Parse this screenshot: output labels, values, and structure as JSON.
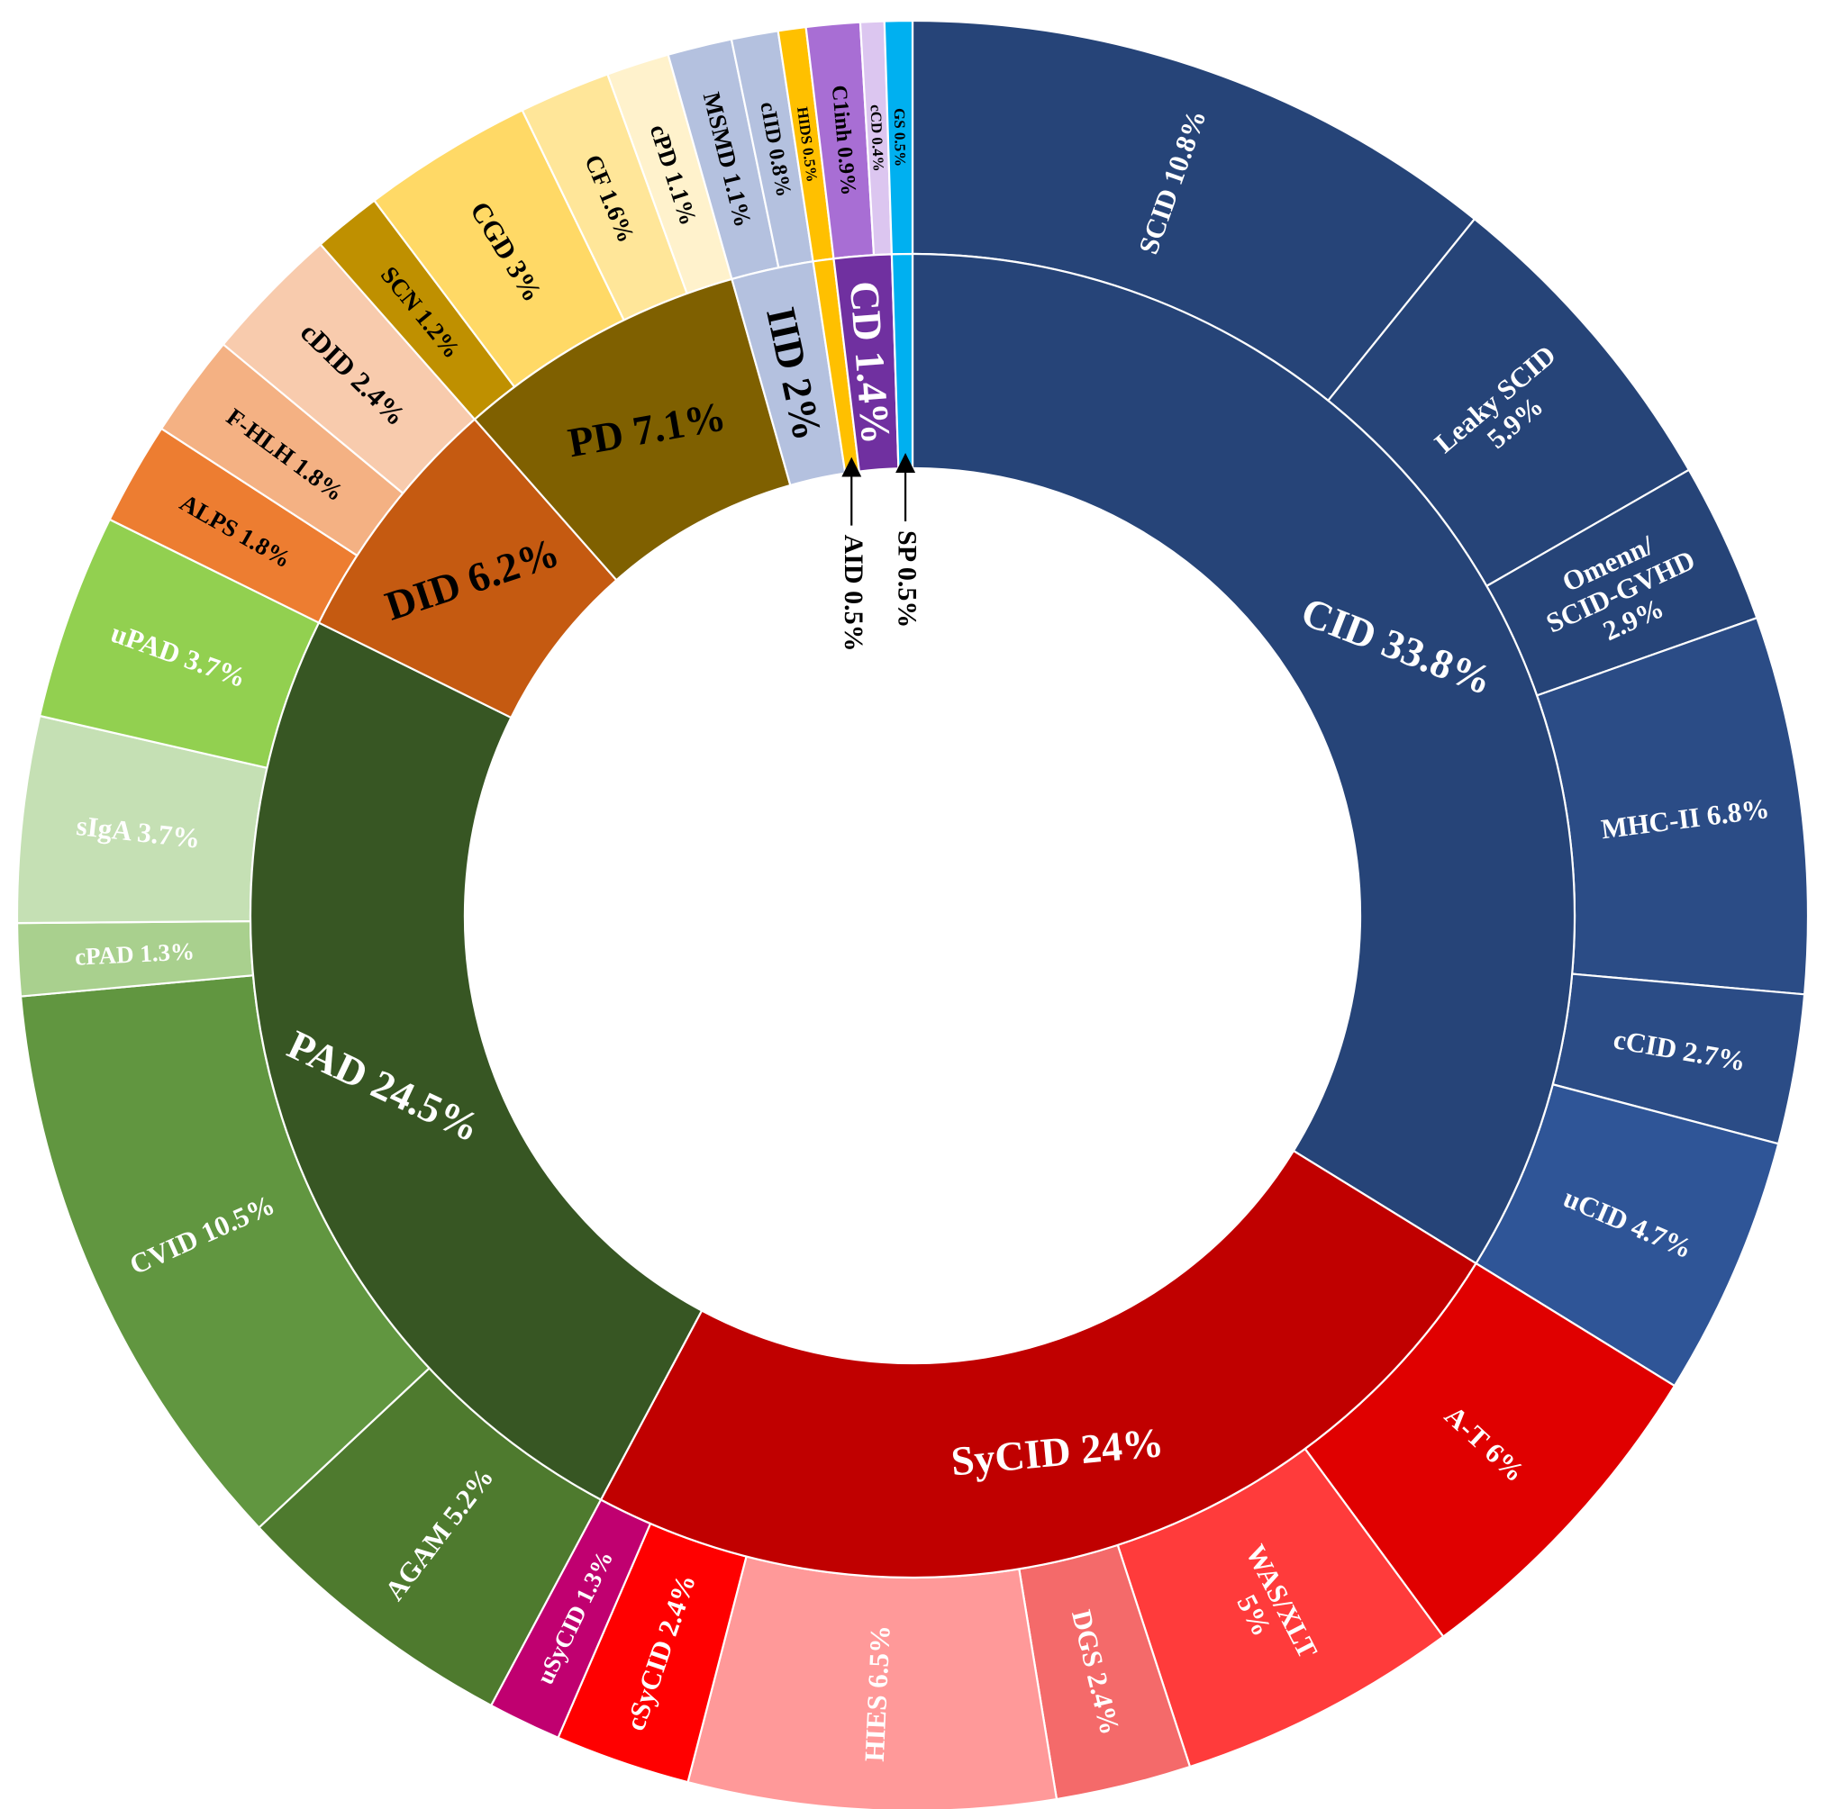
{
  "chart_data": {
    "type": "sunburst",
    "unit": "%",
    "inner_ring": [
      {
        "label": "CID",
        "value": 33.8,
        "text": "CID  33.8%",
        "color": "#264478",
        "text_color": "#ffffff"
      },
      {
        "label": "SyCID",
        "value": 24,
        "text": "SyCID 24%",
        "color": "#c00000",
        "text_color": "#ffffff"
      },
      {
        "label": "PAD",
        "value": 24.5,
        "text": "PAD 24.5%",
        "color": "#375623",
        "text_color": "#ffffff"
      },
      {
        "label": "DID",
        "value": 6.2,
        "text": "DID 6.2%",
        "color": "#c55a11",
        "text_color": "#000000"
      },
      {
        "label": "PD",
        "value": 7.1,
        "text": "PD 7.1%",
        "color": "#7f6000",
        "text_color": "#000000"
      },
      {
        "label": "IID",
        "value": 2,
        "text": "IID 2%",
        "color": "#b4c1df",
        "text_color": "#000000"
      },
      {
        "label": "AID",
        "value": 0.5,
        "text": "",
        "color": "#ffc000",
        "text_color": "#000000"
      },
      {
        "label": "CD",
        "value": 1.4,
        "text": "CD 1.4%",
        "color": "#7030a0",
        "text_color": "#ffffff"
      },
      {
        "label": "SP",
        "value": 0.5,
        "text": "",
        "color": "#00b0f0",
        "text_color": "#000000"
      }
    ],
    "outer_ring": [
      {
        "parent": "CID",
        "label": "SCID",
        "value": 10.8,
        "text": "SCID  10.8%",
        "color": "#264478",
        "text_color": "#ffffff"
      },
      {
        "parent": "CID",
        "label": "Leaky SCID",
        "value": 5.9,
        "text": "Leaky SCID|5.9%",
        "color": "#264478",
        "text_color": "#ffffff"
      },
      {
        "parent": "CID",
        "label": "Omenn/SCID-GVHD",
        "value": 2.9,
        "text": "Omenn/|SCID-GVHD|2.9%",
        "color": "#264478",
        "text_color": "#ffffff"
      },
      {
        "parent": "CID",
        "label": "MHC-II",
        "value": 6.8,
        "text": "MHC-II 6.8%",
        "color": "#2b4c86",
        "text_color": "#ffffff"
      },
      {
        "parent": "CID",
        "label": "cCID",
        "value": 2.7,
        "text": "cCID 2.7%",
        "color": "#2b4c86",
        "text_color": "#ffffff"
      },
      {
        "parent": "CID",
        "label": "uCID",
        "value": 4.7,
        "text": "uCID 4.7%",
        "color": "#2f5597",
        "text_color": "#ffffff"
      },
      {
        "parent": "SyCID",
        "label": "A-T",
        "value": 6,
        "text": "A-T 6%",
        "color": "#e00000",
        "text_color": "#ffffff"
      },
      {
        "parent": "SyCID",
        "label": "WAS/XLT",
        "value": 5,
        "text": "WAS/XLT|5%",
        "color": "#ff3b3b",
        "text_color": "#ffffff"
      },
      {
        "parent": "SyCID",
        "label": "DGS",
        "value": 2.4,
        "text": "DGS  2.4%",
        "color": "#f46a6a",
        "text_color": "#ffffff"
      },
      {
        "parent": "SyCID",
        "label": "HIES",
        "value": 6.5,
        "text": "HIES  6.5%",
        "color": "#ff9999",
        "text_color": "#ffffff"
      },
      {
        "parent": "SyCID",
        "label": "cSyCID",
        "value": 2.4,
        "text": "cSyCID  2.4%",
        "color": "#ff0000",
        "text_color": "#ffffff"
      },
      {
        "parent": "SyCID",
        "label": "uSyCID",
        "value": 1.3,
        "text": "uSyCID  1.3%",
        "color": "#c00070",
        "text_color": "#ffffff"
      },
      {
        "parent": "PAD",
        "label": "AGAM",
        "value": 5.2,
        "text": "AGAM  5.2%",
        "color": "#4e7a2e",
        "text_color": "#ffffff"
      },
      {
        "parent": "PAD",
        "label": "CVID",
        "value": 10.5,
        "text": "CVID  10.5%",
        "color": "#619640",
        "text_color": "#ffffff"
      },
      {
        "parent": "PAD",
        "label": "cPAD",
        "value": 1.3,
        "text": "cPAD 1.3%",
        "color": "#a9d08e",
        "text_color": "#ffffff"
      },
      {
        "parent": "PAD",
        "label": "sIgA",
        "value": 3.7,
        "text": "sIgA  3.7%",
        "color": "#c5e0b4",
        "text_color": "#ffffff"
      },
      {
        "parent": "PAD",
        "label": "uPAD",
        "value": 3.7,
        "text": "uPAD  3.7%",
        "color": "#92d050",
        "text_color": "#ffffff"
      },
      {
        "parent": "DID",
        "label": "ALPS",
        "value": 1.8,
        "text": "ALPS  1.8%",
        "color": "#ed7d31",
        "text_color": "#000000"
      },
      {
        "parent": "DID",
        "label": "F-HLH",
        "value": 1.8,
        "text": "F-HLH  1.8%",
        "color": "#f4b183",
        "text_color": "#000000"
      },
      {
        "parent": "DID",
        "label": "cDID",
        "value": 2.4,
        "text": "cDID  2.4%",
        "color": "#f8cbad",
        "text_color": "#000000"
      },
      {
        "parent": "PD",
        "label": "SCN",
        "value": 1.2,
        "text": "SCN  1.2%",
        "color": "#bf9000",
        "text_color": "#000000"
      },
      {
        "parent": "PD",
        "label": "CGD",
        "value": 3,
        "text": "CGD  3%",
        "color": "#ffd966",
        "text_color": "#000000"
      },
      {
        "parent": "PD",
        "label": "CF",
        "value": 1.6,
        "text": "CF  1.6%",
        "color": "#ffe699",
        "text_color": "#000000"
      },
      {
        "parent": "PD",
        "label": "cPD",
        "value": 1.1,
        "text": "cPD  1.1%",
        "color": "#fff2cc",
        "text_color": "#000000"
      },
      {
        "parent": "IID",
        "label": "MSMD",
        "value": 1.1,
        "text": "MSMD 1.1%",
        "color": "#b4c1df",
        "text_color": "#000000"
      },
      {
        "parent": "IID",
        "label": "cIID",
        "value": 0.8,
        "text": "cIID 0.8%",
        "color": "#b4c1df",
        "text_color": "#000000"
      },
      {
        "parent": "AID",
        "label": "HIDS",
        "value": 0.5,
        "text": "HIDS 0.5%",
        "color": "#ffc000",
        "text_color": "#000000"
      },
      {
        "parent": "CD",
        "label": "C1inh",
        "value": 0.9,
        "text": "C1inh 0.9%",
        "color": "#a86ed4",
        "text_color": "#000000"
      },
      {
        "parent": "CD",
        "label": "cCD",
        "value": 0.4,
        "text": "cCD 0.4%",
        "color": "#dcc6f0",
        "text_color": "#000000"
      },
      {
        "parent": "SP",
        "label": "GS",
        "value": 0.5,
        "text": "GS 0.5%",
        "color": "#00b0f0",
        "text_color": "#000000"
      }
    ],
    "annotations": [
      {
        "text": "AID 0.5%",
        "points_to": "AID"
      },
      {
        "text": "SP 0.5%",
        "points_to": "SP"
      }
    ]
  }
}
